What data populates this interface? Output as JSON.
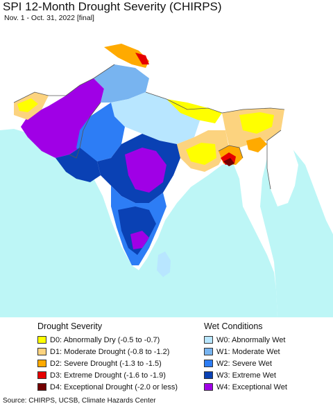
{
  "title": "SPI 12-Month Drought Severity (CHIRPS)",
  "subtitle": "Nov. 1 - Oct. 31, 2022 [final]",
  "colors": {
    "ocean": "#bdf6f6",
    "land_outside": "#ffffff",
    "border": "#555555",
    "D0": "#ffff00",
    "D1": "#fcd37f",
    "D2": "#ffaa00",
    "D3": "#e60000",
    "D4": "#730000",
    "W0": "#b8e6ff",
    "W1": "#78b4f0",
    "W2": "#2d7df5",
    "W3": "#0a41b4",
    "W4": "#a000e6"
  },
  "legend": {
    "drought": {
      "title": "Drought Severity",
      "items": [
        {
          "code": "D0",
          "label": "D0: Abnormally Dry (-0.5 to -0.7)"
        },
        {
          "code": "D1",
          "label": "D1: Moderate Drought (-0.8 to -1.2)"
        },
        {
          "code": "D2",
          "label": "D2: Severe Drought (-1.3 to -1.5)"
        },
        {
          "code": "D3",
          "label": "D3: Extreme Drought (-1.6 to -1.9)"
        },
        {
          "code": "D4",
          "label": "D4: Exceptional Drought (-2.0 or less)"
        }
      ]
    },
    "wet": {
      "title": "Wet Conditions",
      "items": [
        {
          "code": "W0",
          "label": "W0: Abnormally Wet"
        },
        {
          "code": "W1",
          "label": "W1: Moderate Wet"
        },
        {
          "code": "W2",
          "label": "W2: Severe Wet"
        },
        {
          "code": "W3",
          "label": "W3: Extreme Wet"
        },
        {
          "code": "W4",
          "label": "W4: Exceptional Wet"
        }
      ]
    }
  },
  "source": "Source: CHIRPS, UCSB, Climate Hazards Center"
}
